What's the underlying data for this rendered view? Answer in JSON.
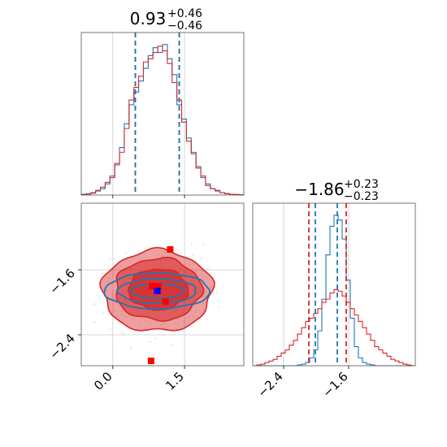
{
  "chart_data": [
    {
      "type": "histogram",
      "panel": "top-left",
      "param_index": 0,
      "title_value": "0.93",
      "title_plus": "+0.46",
      "title_minus": "−0.46",
      "xlim": [
        -0.66,
        2.74
      ],
      "grid": true,
      "bin_edges": [
        -0.66,
        -0.56,
        -0.46,
        -0.36,
        -0.26,
        -0.16,
        -0.06,
        0.04,
        0.14,
        0.24,
        0.34,
        0.44,
        0.54,
        0.64,
        0.74,
        0.84,
        0.94,
        1.04,
        1.14,
        1.24,
        1.34,
        1.44,
        1.54,
        1.64,
        1.74,
        1.84,
        1.94,
        2.04,
        2.14,
        2.24,
        2.34,
        2.44,
        2.54,
        2.64,
        2.74
      ],
      "series": [
        {
          "color": "#1f77b4",
          "counts": [
            0.5,
            0.8,
            1.2,
            2.5,
            4,
            7,
            12,
            19,
            30,
            45,
            57,
            65,
            72,
            80,
            88,
            93,
            90,
            95,
            86,
            76,
            57,
            48,
            36,
            26,
            18,
            11,
            7,
            4,
            2.5,
            1.5,
            0.8,
            0.5,
            0.3,
            0.2
          ]
        },
        {
          "color": "#d62728",
          "counts": [
            0.3,
            0.6,
            1.5,
            3,
            5,
            8,
            11,
            20,
            27,
            42,
            60,
            68,
            75,
            84,
            86,
            90,
            94,
            91,
            83,
            71,
            60,
            46,
            34,
            27,
            17,
            12,
            6,
            4,
            3,
            1.5,
            1,
            0.5,
            0.4,
            0.2
          ]
        }
      ],
      "quantile_lines": [
        {
          "color": "#d62728",
          "x": [
            0.47,
            1.39
          ]
        },
        {
          "color": "#1f77b4",
          "x": [
            0.47,
            1.39
          ]
        }
      ]
    },
    {
      "type": "histogram",
      "panel": "bottom-right",
      "param_index": 1,
      "title_value": "−1.86",
      "title_plus": "+0.23",
      "title_minus": "−0.23",
      "xlim": [
        -2.78,
        -0.78
      ],
      "x_ticks": [
        -2.4,
        -1.6
      ],
      "x_tick_labels": [
        "−2.4",
        "−1.6"
      ],
      "grid": true,
      "bin_edges": [
        -2.78,
        -2.73,
        -2.68,
        -2.63,
        -2.58,
        -2.53,
        -2.48,
        -2.43,
        -2.38,
        -2.33,
        -2.28,
        -2.23,
        -2.18,
        -2.13,
        -2.08,
        -2.03,
        -1.98,
        -1.93,
        -1.88,
        -1.83,
        -1.78,
        -1.73,
        -1.68,
        -1.63,
        -1.58,
        -1.53,
        -1.48,
        -1.43,
        -1.38,
        -1.33,
        -1.28,
        -1.23,
        -1.18,
        -1.13,
        -1.08,
        -1.03,
        -0.98,
        -0.93,
        -0.88,
        -0.83,
        -0.78
      ],
      "series": [
        {
          "color": "#1f77b4",
          "counts": [
            0,
            0,
            0,
            0,
            0,
            0,
            0,
            0,
            0,
            0,
            0,
            0.5,
            1,
            2,
            5,
            10,
            22,
            42,
            70,
            88,
            95,
            92,
            80,
            54,
            30,
            12,
            5,
            2,
            1,
            0.5,
            0,
            0,
            0,
            0,
            0,
            0,
            0,
            0,
            0,
            0
          ]
        },
        {
          "color": "#d62728",
          "counts": [
            0,
            0.5,
            1,
            2,
            3,
            4,
            6,
            8,
            10,
            13,
            16,
            20,
            24,
            28,
            30,
            33,
            36,
            40,
            42,
            46,
            48,
            47,
            44,
            40,
            36,
            32,
            28,
            24,
            20,
            16,
            12,
            10,
            8,
            6,
            4,
            3,
            2,
            1,
            0.5,
            0
          ]
        }
      ],
      "quantile_lines": [
        {
          "color": "#d62728",
          "x": [
            -2.09,
            -1.63
          ]
        },
        {
          "color": "#1f77b4",
          "x": [
            -2.01,
            -1.74
          ]
        }
      ]
    },
    {
      "type": "scatter",
      "panel": "bottom-left",
      "xlim": [
        -0.66,
        2.74
      ],
      "ylim": [
        -2.78,
        -0.78
      ],
      "x_ticks": [
        0.0,
        1.5
      ],
      "x_tick_labels": [
        "0.0",
        "1.5"
      ],
      "y_ticks": [
        -1.6,
        -2.4
      ],
      "y_tick_labels": [
        "−1.6",
        "−2.4"
      ],
      "grid": true,
      "contours": [
        {
          "color": "#d62728",
          "filled": true,
          "fill": "#d62728",
          "opacity": 0.45,
          "cx": 0.93,
          "cy": -1.86,
          "rx": 1.15,
          "ry": 0.5
        },
        {
          "color": "#d62728",
          "filled": true,
          "fill": "#d62728",
          "opacity": 0.55,
          "cx": 0.95,
          "cy": -1.84,
          "rx": 0.9,
          "ry": 0.38
        },
        {
          "color": "#d62728",
          "filled": true,
          "fill": "#d62728",
          "opacity": 0.75,
          "cx": 0.95,
          "cy": -1.84,
          "rx": 0.62,
          "ry": 0.25
        },
        {
          "color": "#1f77b4",
          "filled": false,
          "cx": 0.93,
          "cy": -1.86,
          "rx": 1.1,
          "ry": 0.22
        },
        {
          "color": "#1f77b4",
          "filled": false,
          "cx": 0.93,
          "cy": -1.86,
          "rx": 0.82,
          "ry": 0.15
        },
        {
          "color": "#1f77b4",
          "filled": false,
          "cx": 0.93,
          "cy": -1.86,
          "rx": 0.55,
          "ry": 0.09
        }
      ],
      "points": [
        {
          "x": 1.2,
          "y": -1.35,
          "color": "#ff0000"
        },
        {
          "x": 0.8,
          "y": -2.72,
          "color": "#ff0000"
        },
        {
          "x": 0.82,
          "y": -1.8,
          "color": "#ff0000"
        },
        {
          "x": 0.95,
          "y": -1.8,
          "color": "#ff0000"
        },
        {
          "x": 1.1,
          "y": -1.99,
          "color": "#ff0000"
        },
        {
          "x": 0.93,
          "y": -1.86,
          "color": "#0000ff"
        }
      ]
    }
  ]
}
